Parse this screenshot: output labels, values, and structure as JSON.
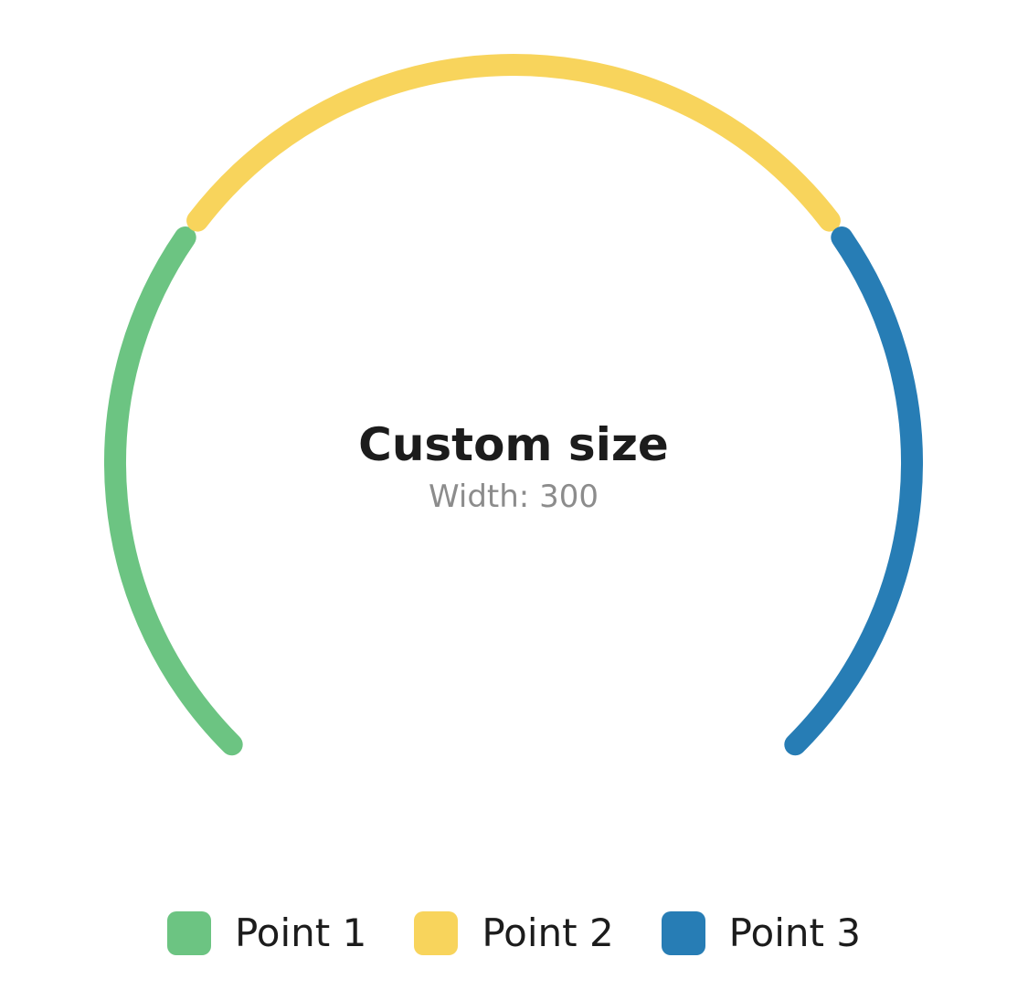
{
  "chart_data": {
    "type": "radial-gauge",
    "title": "Custom size",
    "subtitle": "Width: 300",
    "track_color": "#eeeeee",
    "arc_degrees": 270,
    "series": [
      {
        "name": "Point 1",
        "value": 30,
        "color": "#6cc482"
      },
      {
        "name": "Point 2",
        "value": 40,
        "color": "#f8d45c"
      },
      {
        "name": "Point 3",
        "value": 30,
        "color": "#277db5"
      }
    ],
    "legend": {
      "position": "bottom"
    }
  },
  "legend_items": [
    {
      "label": "Point 1",
      "color": "#6cc482"
    },
    {
      "label": "Point 2",
      "color": "#f8d45c"
    },
    {
      "label": "Point 3",
      "color": "#277db5"
    }
  ]
}
